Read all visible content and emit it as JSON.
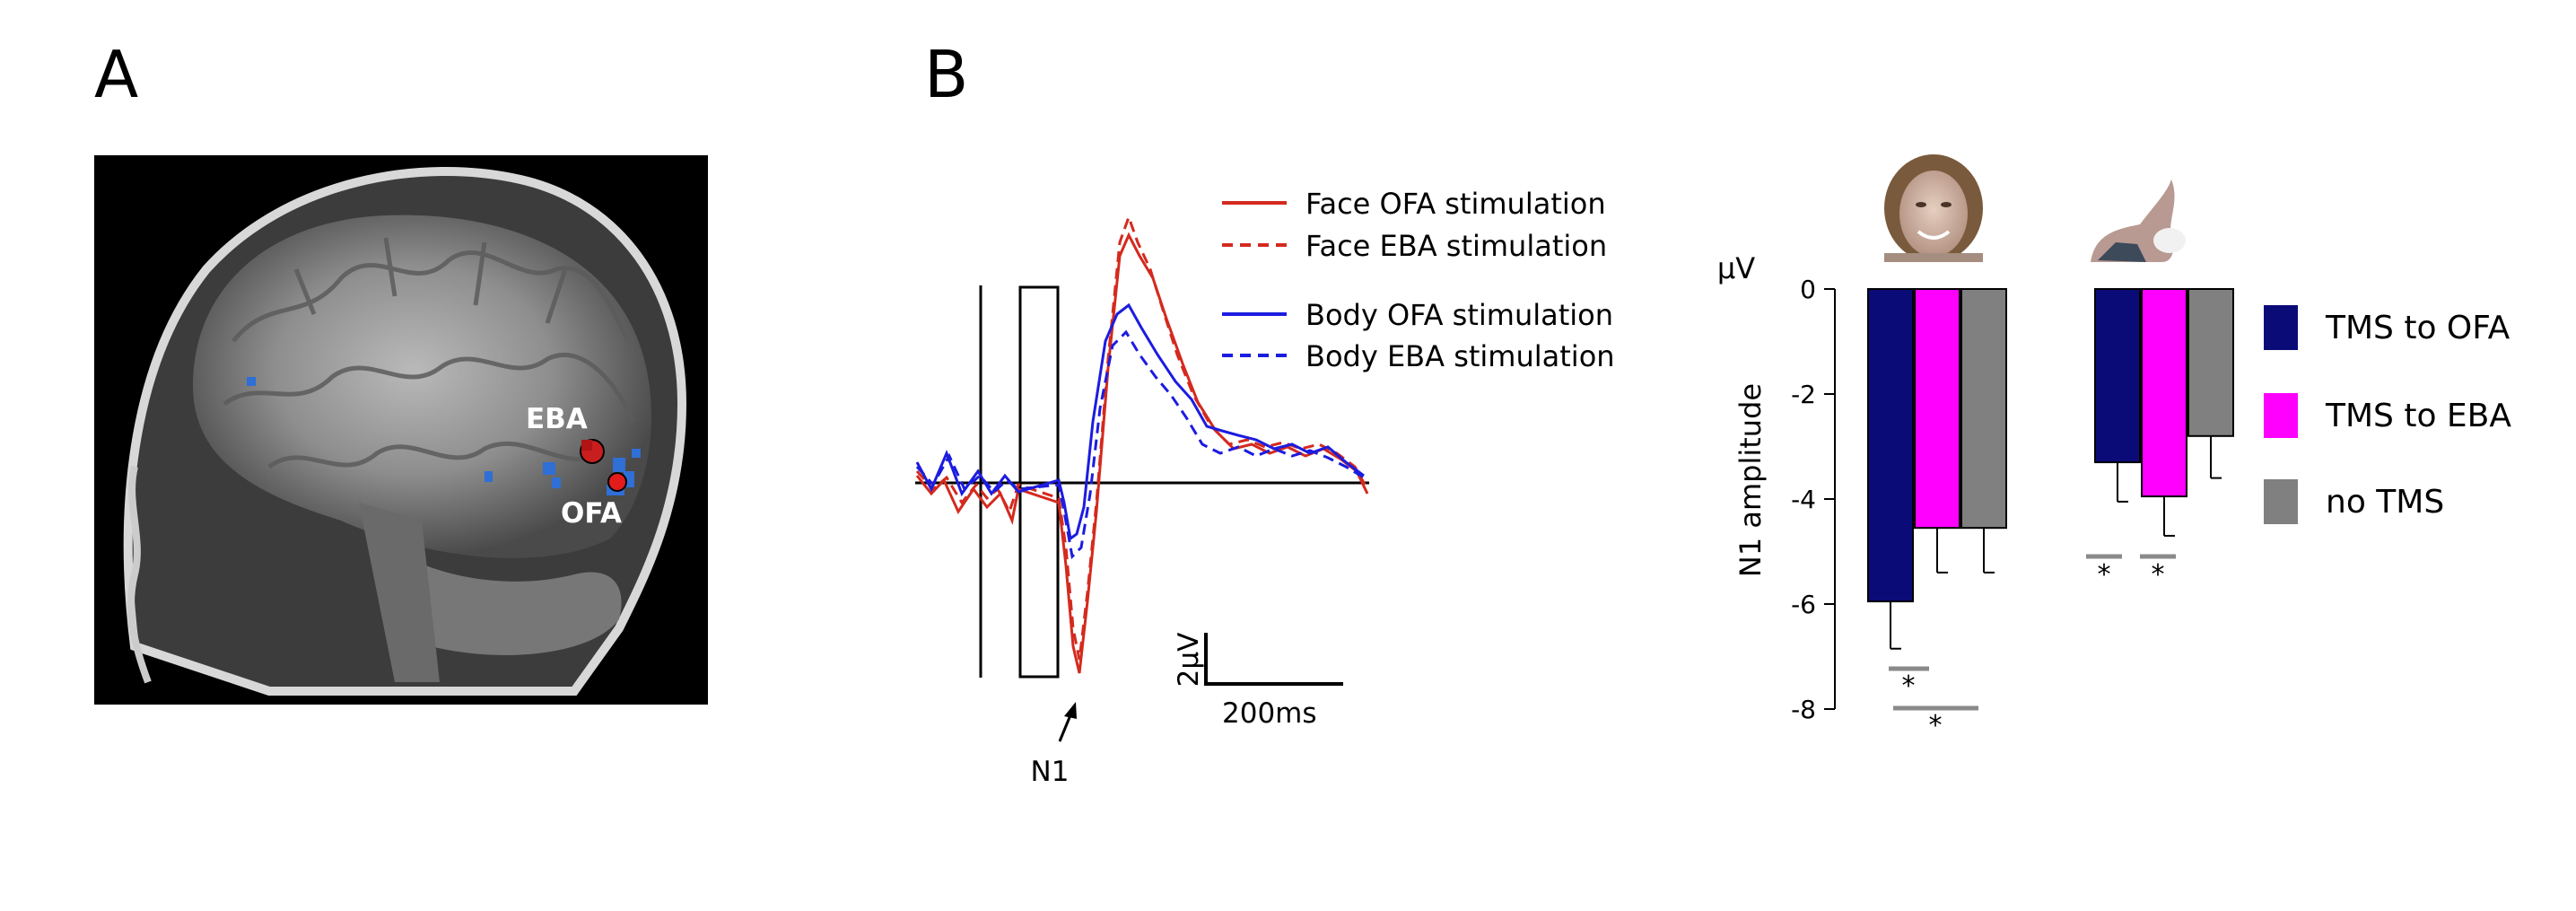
{
  "panel_a": {
    "label": "A",
    "region_labels": {
      "eba": "EBA",
      "ofa": "OFA"
    }
  },
  "panel_b": {
    "label": "B",
    "erp": {
      "legend": [
        {
          "label": "Face OFA stimulation",
          "color": "#d42a1e",
          "dash": false
        },
        {
          "label": "Face EBA stimulation",
          "color": "#d42a1e",
          "dash": true
        },
        {
          "label": "Body OFA stimulation",
          "color": "#1c1ce0",
          "dash": false
        },
        {
          "label": "Body EBA stimulation",
          "color": "#1c1ce0",
          "dash": true
        }
      ],
      "scale_amplitude": "2µV",
      "scale_time": "200ms",
      "component": "N1"
    }
  },
  "chart_data": {
    "type": "bar",
    "ylabel": "N1 amplitude",
    "unit": "µV",
    "ylim": [
      -8,
      0
    ],
    "yticks": [
      0,
      -2,
      -4,
      -6,
      -8
    ],
    "conditions": [
      "TMS to OFA",
      "TMS to EBA",
      "no TMS"
    ],
    "colors": [
      "#0b0b78",
      "#ff00ff",
      "#808080"
    ],
    "groups": [
      {
        "name": "Face",
        "values": [
          -5.95,
          -4.55,
          -4.55
        ],
        "errors": [
          0.9,
          0.85,
          0.85
        ]
      },
      {
        "name": "Body",
        "values": [
          -3.3,
          -3.95,
          -2.8
        ],
        "errors": [
          0.75,
          0.75,
          0.8
        ]
      }
    ],
    "significance_marks": [
      "*",
      "*",
      "*",
      "*"
    ]
  }
}
